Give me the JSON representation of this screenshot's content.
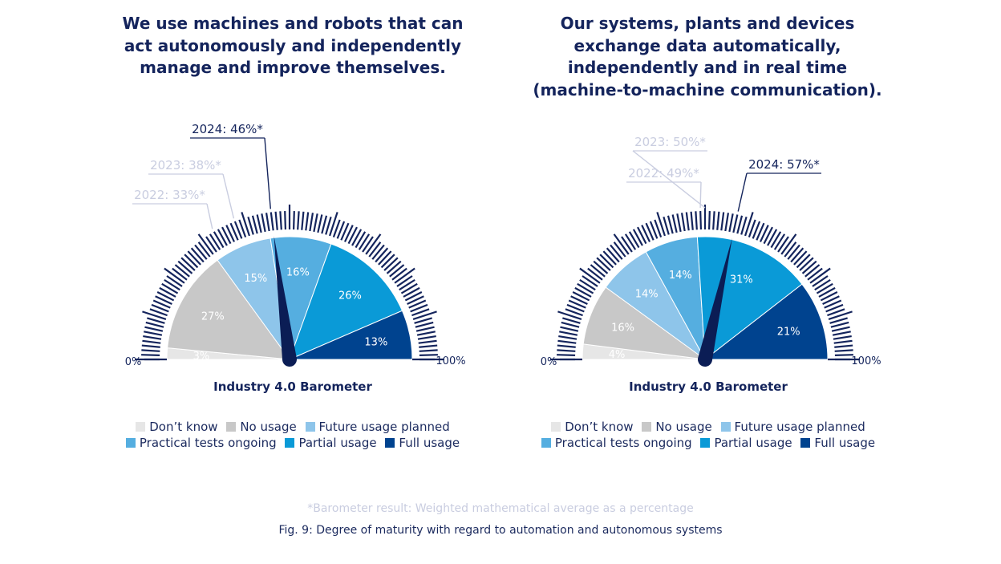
{
  "chart_data": [
    {
      "type": "gauge",
      "title": "We use machines and robots that can act autonomously and independently manage and improve themselves.",
      "xlabel": "Industry 4.0 Barometer",
      "scale_min_label": "0%",
      "scale_max_label": "100%",
      "segments": [
        {
          "name": "Don’t know",
          "value": 3,
          "label": "3%"
        },
        {
          "name": "No usage",
          "value": 27,
          "label": "27%"
        },
        {
          "name": "Future usage planned",
          "value": 15,
          "label": "15%"
        },
        {
          "name": "Practical tests ongoing",
          "value": 16,
          "label": "16%"
        },
        {
          "name": "Partial usage",
          "value": 26,
          "label": "26%"
        },
        {
          "name": "Full usage",
          "value": 13,
          "label": "13%"
        }
      ],
      "barometer": [
        {
          "year": "2022",
          "value": 33,
          "label": "2022: 33%*"
        },
        {
          "year": "2023",
          "value": 38,
          "label": "2023: 38%*"
        },
        {
          "year": "2024",
          "value": 46,
          "label": "2024: 46%*"
        }
      ]
    },
    {
      "type": "gauge",
      "title": "Our systems, plants and devices exchange data automatically, independently and in real time (machine-to-machine communication).",
      "xlabel": "Industry 4.0 Barometer",
      "scale_min_label": "0%",
      "scale_max_label": "100%",
      "segments": [
        {
          "name": "Don’t know",
          "value": 4,
          "label": "4%"
        },
        {
          "name": "No usage",
          "value": 16,
          "label": "16%"
        },
        {
          "name": "Future usage planned",
          "value": 14,
          "label": "14%"
        },
        {
          "name": "Practical tests ongoing",
          "value": 14,
          "label": "14%"
        },
        {
          "name": "Partial usage",
          "value": 31,
          "label": "31%"
        },
        {
          "name": "Full usage",
          "value": 21,
          "label": "21%"
        }
      ],
      "barometer": [
        {
          "year": "2022",
          "value": 49,
          "label": "2022: 49%*"
        },
        {
          "year": "2023",
          "value": 50,
          "label": "2023: 50%*"
        },
        {
          "year": "2024",
          "value": 57,
          "label": "2024: 57%*"
        }
      ]
    }
  ],
  "colors": {
    "dont_know": "#e6e6e6",
    "no_usage": "#c8c8c8",
    "future_usage_planned": "#8ec5ea",
    "practical_tests_ongoing": "#55aee0",
    "partial_usage": "#0a9ad7",
    "full_usage": "#00438f",
    "ticks": "#14245c",
    "needle": "#0b1d55",
    "past_years": "#c9cde0"
  },
  "legend": [
    "Don’t know",
    "No usage",
    "Future usage planned",
    "Practical tests ongoing",
    "Partial usage",
    "Full usage"
  ],
  "footnote": "*Barometer result: Weighted mathematical average as a percentage",
  "caption": "Fig. 9: Degree of maturity with regard to automation and autonomous systems"
}
